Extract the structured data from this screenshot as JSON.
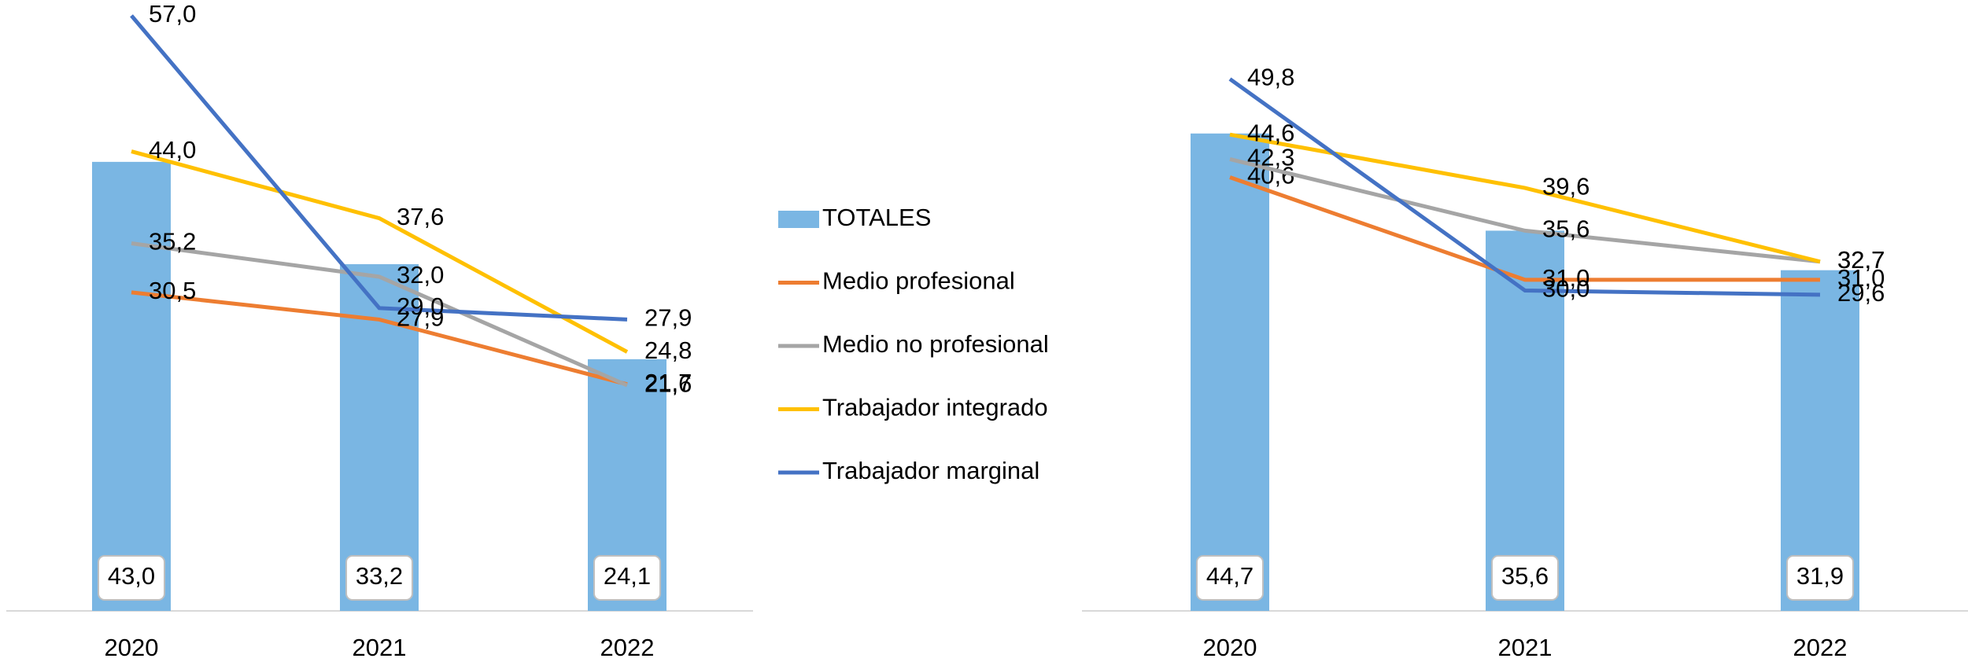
{
  "chart_data": [
    {
      "type": "combo",
      "categories": [
        "2020",
        "2021",
        "2022"
      ],
      "ylim": [
        0,
        58.5
      ],
      "series": [
        {
          "name": "TOTALES",
          "type": "bar",
          "color": "#7ab6e3",
          "values": [
            43.0,
            33.2,
            24.1
          ],
          "value_labels": [
            "43,0",
            "33,2",
            "24,1"
          ]
        },
        {
          "name": "Medio profesional",
          "type": "line",
          "color": "#ed7d31",
          "values": [
            30.5,
            27.9,
            21.7
          ],
          "value_labels": [
            "30,5",
            "27,9",
            "21,7"
          ]
        },
        {
          "name": "Medio no profesional",
          "type": "line",
          "color": "#a5a5a5",
          "values": [
            35.2,
            32.0,
            21.6
          ],
          "value_labels": [
            "35,2",
            "32,0",
            "21,6"
          ]
        },
        {
          "name": "Trabajador integrado",
          "type": "line",
          "color": "#ffc000",
          "values": [
            44.0,
            37.6,
            24.8
          ],
          "value_labels": [
            "44,0",
            "37,6",
            "24,8"
          ]
        },
        {
          "name": "Trabajador marginal",
          "type": "line",
          "color": "#4472c4",
          "values": [
            57.0,
            29.0,
            27.9
          ],
          "value_labels": [
            "57,0",
            "29,0",
            "27,9"
          ]
        }
      ]
    },
    {
      "type": "combo",
      "categories": [
        "2020",
        "2021",
        "2022"
      ],
      "ylim": [
        0,
        57.2
      ],
      "series": [
        {
          "type": "bar",
          "color": "#7ab6e3",
          "values": [
            44.7,
            35.6,
            31.9
          ],
          "value_labels": [
            "44,7",
            "35,6",
            "31,9"
          ]
        },
        {
          "type": "line",
          "color": "#ed7d31",
          "values": [
            40.6,
            31.0,
            31.0
          ],
          "value_labels": [
            "40,6",
            "31,0",
            "31,0"
          ]
        },
        {
          "type": "line",
          "color": "#a5a5a5",
          "values": [
            42.3,
            35.6,
            32.7
          ],
          "value_labels": [
            "42,3",
            "35,6",
            "32,7"
          ]
        },
        {
          "type": "line",
          "color": "#ffc000",
          "values": [
            44.6,
            39.6,
            32.7
          ],
          "value_labels": [
            "44,6",
            "39,6",
            "32,7"
          ]
        },
        {
          "type": "line",
          "color": "#4472c4",
          "values": [
            49.8,
            30.0,
            29.6
          ],
          "value_labels": [
            "49,8",
            "30,0",
            "29,6"
          ]
        }
      ]
    }
  ]
}
